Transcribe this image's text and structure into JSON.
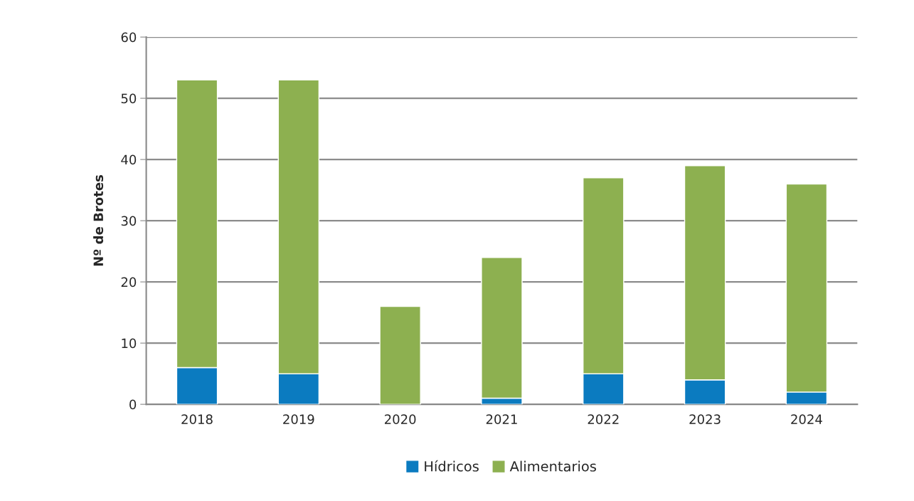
{
  "chart_data": {
    "type": "bar",
    "stacked": true,
    "ylabel": "Nº de Brotes",
    "categories": [
      "2018",
      "2019",
      "2020",
      "2021",
      "2022",
      "2023",
      "2024"
    ],
    "series": [
      {
        "name": "Hídricos",
        "color": "#0b7bc0",
        "values": [
          6,
          5,
          0,
          1,
          5,
          4,
          2
        ]
      },
      {
        "name": "Alimentarios",
        "color": "#8db050",
        "values": [
          47,
          48,
          16,
          23,
          32,
          35,
          34
        ]
      }
    ],
    "ylim": [
      0,
      60
    ],
    "yticks": [
      0,
      10,
      20,
      30,
      40,
      50,
      60
    ],
    "grid": "y",
    "legend": "bottom"
  }
}
